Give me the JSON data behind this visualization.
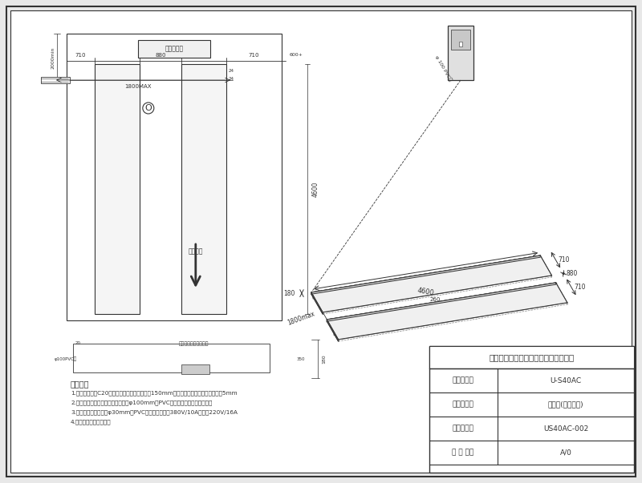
{
  "bg_color": "#e8e8e8",
  "drawing_bg": "#ffffff",
  "line_color": "#555555",
  "dark_line": "#333333",
  "company": "上海巴兰仓汽车检测设备股份有限公司",
  "product_model_label": "产品型号：",
  "product_model_value": "U-S40AC",
  "name_label": "名　　称：",
  "name_value": "地基图(地坑安装)",
  "drawing_no_label": "图　　号：",
  "drawing_no_value": "US40AC-002",
  "version_label": "版 本 号：",
  "version_value": "A/0",
  "notes_title": "基础要求",
  "note1": "1.混凝土等级为C20及以上，坑底混凝土厅度为150mm以上，两地坑内水平误差不大于5mm",
  "note2": "2.预埋控制台至地坑和两地坑间预埋φ100mm的PVC管用于穿油管、气管、电线",
  "note3": "3.电源线和气源线预埋φ30mm的PVC管，电源三相为380V/10A或单相220V/16A",
  "note4": "4.电控算位置可左右互换",
  "label_ctrlbox": "控制变位仪",
  "label_cardir": "进车方向",
  "label_foundation": "地基层（锛度混凝土）",
  "label_pvc": "φ100PVC管",
  "label_1800max": "1800MAX",
  "label_4600": "4600",
  "label_180": "180",
  "label_260": "260",
  "label_710": "710",
  "label_880": "880",
  "label_2000min": "2000min",
  "label_600": "600+",
  "label_100pvc": "φ 100 PVC管"
}
